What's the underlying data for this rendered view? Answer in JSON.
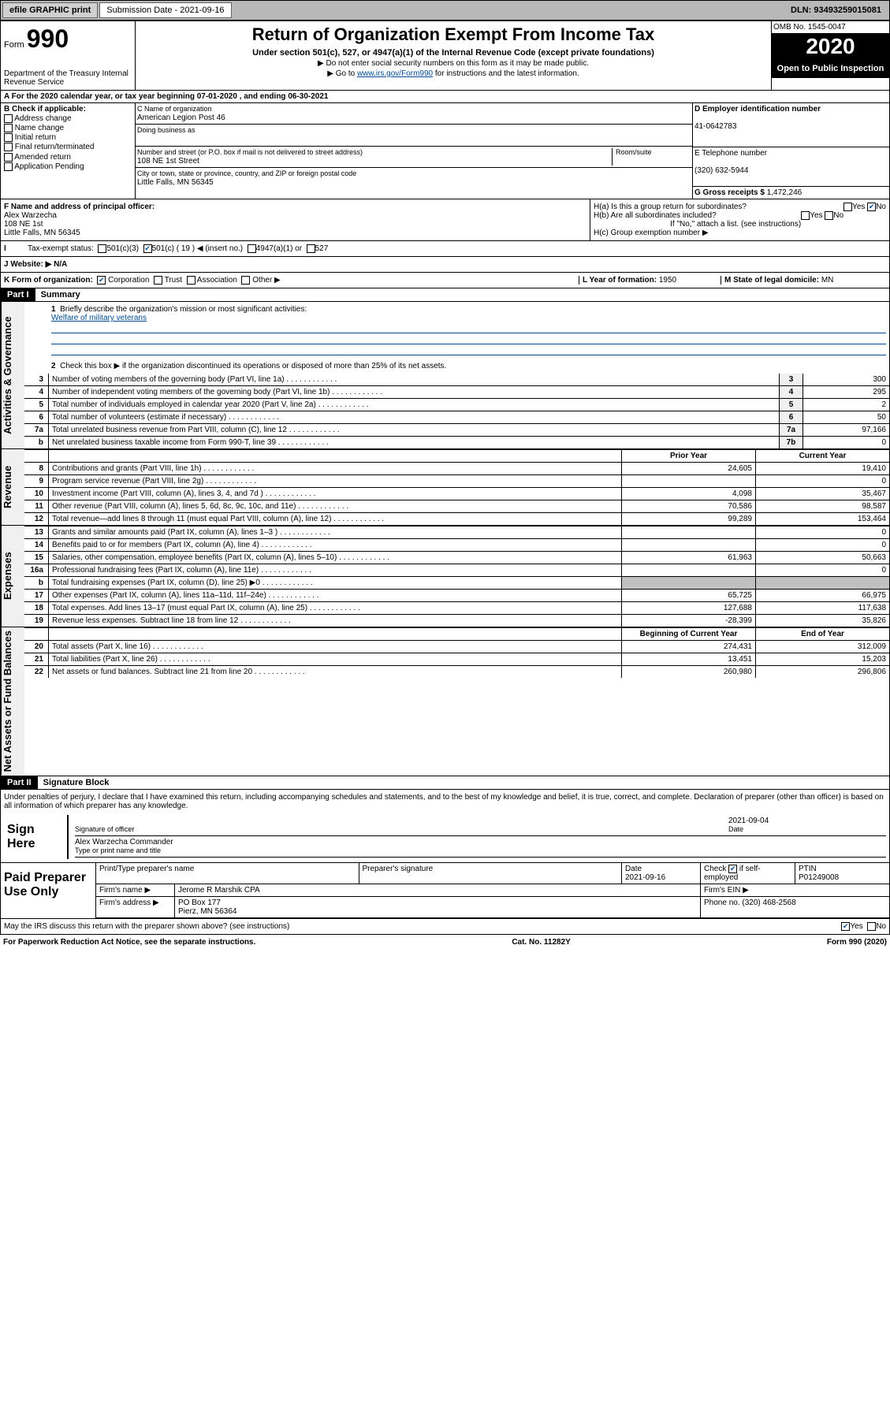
{
  "topbar": {
    "efile_label": "efile GRAPHIC print",
    "submission_label": "Submission Date - 2021-09-16",
    "dln": "DLN: 93493259015081"
  },
  "header": {
    "form_label": "Form",
    "form_number": "990",
    "dept": "Department of the Treasury\nInternal Revenue Service",
    "title": "Return of Organization Exempt From Income Tax",
    "subtitle": "Under section 501(c), 527, or 4947(a)(1) of the Internal Revenue Code (except private foundations)",
    "note1": "▶ Do not enter social security numbers on this form as it may be made public.",
    "note2_pre": "▶ Go to ",
    "note2_link": "www.irs.gov/Form990",
    "note2_post": " for instructions and the latest information.",
    "omb": "OMB No. 1545-0047",
    "year": "2020",
    "inspection": "Open to Public Inspection"
  },
  "row_a": "A For the 2020 calendar year, or tax year beginning 07-01-2020    , and ending 06-30-2021",
  "box_b": {
    "label": "B Check if applicable:",
    "items": [
      "Address change",
      "Name change",
      "Initial return",
      "Final return/terminated",
      "Amended return",
      "Application Pending"
    ]
  },
  "box_c": {
    "label": "C Name of organization",
    "name": "American Legion Post 46",
    "dba_label": "Doing business as",
    "street_label": "Number and street (or P.O. box if mail is not delivered to street address)",
    "room_label": "Room/suite",
    "street": "108 NE 1st Street",
    "city_label": "City or town, state or province, country, and ZIP or foreign postal code",
    "city": "Little Falls, MN  56345"
  },
  "box_d": {
    "label": "D Employer identification number",
    "value": "41-0642783"
  },
  "box_e": {
    "label": "E Telephone number",
    "value": "(320) 632-5944"
  },
  "box_g": {
    "label": "G Gross receipts $",
    "value": "1,472,246"
  },
  "box_f": {
    "label": "F  Name and address of principal officer:",
    "name": "Alex Warzecha",
    "addr1": "108 NE 1st",
    "addr2": "Little Falls, MN  56345"
  },
  "box_h": {
    "ha": "H(a)  Is this a group return for subordinates?",
    "hb": "H(b)  Are all subordinates included?",
    "hb_note": "If \"No,\" attach a list. (see instructions)",
    "hc": "H(c)  Group exemption number ▶",
    "yes": "Yes",
    "no": "No"
  },
  "row_i": {
    "label": "Tax-exempt status:",
    "opt1": "501(c)(3)",
    "opt2": "501(c) ( 19 ) ◀ (insert no.)",
    "opt3": "4947(a)(1) or",
    "opt4": "527"
  },
  "row_j": {
    "label": "J   Website: ▶",
    "value": "N/A"
  },
  "row_k": {
    "label": "K Form of organization:",
    "opts": [
      "Corporation",
      "Trust",
      "Association",
      "Other ▶"
    ],
    "l_label": "L Year of formation:",
    "l_val": "1950",
    "m_label": "M State of legal domicile:",
    "m_val": "MN"
  },
  "parts": {
    "p1": "Part I",
    "p1_title": "Summary",
    "p2": "Part II",
    "p2_title": "Signature Block"
  },
  "summary": {
    "q1": "Briefly describe the organization's mission or most significant activities:",
    "q1_ans": "Welfare of military veterans",
    "q2": "Check this box ▶      if the organization discontinued its operations or disposed of more than 25% of its net assets.",
    "lines": [
      {
        "n": "3",
        "t": "Number of voting members of the governing body (Part VI, line 1a)",
        "r": "3",
        "v": "300"
      },
      {
        "n": "4",
        "t": "Number of independent voting members of the governing body (Part VI, line 1b)",
        "r": "4",
        "v": "295"
      },
      {
        "n": "5",
        "t": "Total number of individuals employed in calendar year 2020 (Part V, line 2a)",
        "r": "5",
        "v": "2"
      },
      {
        "n": "6",
        "t": "Total number of volunteers (estimate if necessary)",
        "r": "6",
        "v": "50"
      },
      {
        "n": "7a",
        "t": "Total unrelated business revenue from Part VIII, column (C), line 12",
        "r": "7a",
        "v": "97,166"
      },
      {
        "n": "b",
        "t": "Net unrelated business taxable income from Form 990-T, line 39",
        "r": "7b",
        "v": "0"
      }
    ],
    "rev_hdr_prior": "Prior Year",
    "rev_hdr_curr": "Current Year",
    "rev": [
      {
        "n": "8",
        "t": "Contributions and grants (Part VIII, line 1h)",
        "p": "24,605",
        "c": "19,410"
      },
      {
        "n": "9",
        "t": "Program service revenue (Part VIII, line 2g)",
        "p": "",
        "c": "0"
      },
      {
        "n": "10",
        "t": "Investment income (Part VIII, column (A), lines 3, 4, and 7d )",
        "p": "4,098",
        "c": "35,467"
      },
      {
        "n": "11",
        "t": "Other revenue (Part VIII, column (A), lines 5, 6d, 8c, 9c, 10c, and 11e)",
        "p": "70,586",
        "c": "98,587"
      },
      {
        "n": "12",
        "t": "Total revenue—add lines 8 through 11 (must equal Part VIII, column (A), line 12)",
        "p": "99,289",
        "c": "153,464"
      }
    ],
    "exp": [
      {
        "n": "13",
        "t": "Grants and similar amounts paid (Part IX, column (A), lines 1–3 )",
        "p": "",
        "c": "0"
      },
      {
        "n": "14",
        "t": "Benefits paid to or for members (Part IX, column (A), line 4)",
        "p": "",
        "c": "0"
      },
      {
        "n": "15",
        "t": "Salaries, other compensation, employee benefits (Part IX, column (A), lines 5–10)",
        "p": "61,963",
        "c": "50,663"
      },
      {
        "n": "16a",
        "t": "Professional fundraising fees (Part IX, column (A), line 11e)",
        "p": "",
        "c": "0"
      },
      {
        "n": "b",
        "t": "Total fundraising expenses (Part IX, column (D), line 25) ▶0",
        "p": "shade",
        "c": "shade"
      },
      {
        "n": "17",
        "t": "Other expenses (Part IX, column (A), lines 11a–11d, 11f–24e)",
        "p": "65,725",
        "c": "66,975"
      },
      {
        "n": "18",
        "t": "Total expenses. Add lines 13–17 (must equal Part IX, column (A), line 25)",
        "p": "127,688",
        "c": "117,638"
      },
      {
        "n": "19",
        "t": "Revenue less expenses. Subtract line 18 from line 12",
        "p": "-28,399",
        "c": "35,826"
      }
    ],
    "net_hdr_beg": "Beginning of Current Year",
    "net_hdr_end": "End of Year",
    "net": [
      {
        "n": "20",
        "t": "Total assets (Part X, line 16)",
        "p": "274,431",
        "c": "312,009"
      },
      {
        "n": "21",
        "t": "Total liabilities (Part X, line 26)",
        "p": "13,451",
        "c": "15,203"
      },
      {
        "n": "22",
        "t": "Net assets or fund balances. Subtract line 21 from line 20",
        "p": "260,980",
        "c": "296,806"
      }
    ]
  },
  "sidelabels": {
    "act": "Activities & Governance",
    "rev": "Revenue",
    "exp": "Expenses",
    "net": "Net Assets or Fund Balances"
  },
  "sig": {
    "perjury": "Under penalties of perjury, I declare that I have examined this return, including accompanying schedules and statements, and to the best of my knowledge and belief, it is true, correct, and complete. Declaration of preparer (other than officer) is based on all information of which preparer has any knowledge.",
    "sign_here": "Sign Here",
    "sig_officer": "Signature of officer",
    "date_label": "Date",
    "date": "2021-09-04",
    "name": "Alex Warzecha  Commander",
    "name_label": "Type or print name and title"
  },
  "prep": {
    "label": "Paid Preparer Use Only",
    "print_name": "Print/Type preparer's name",
    "prep_sig": "Preparer's signature",
    "date_label": "Date",
    "date": "2021-09-16",
    "check_label": "Check        if self-employed",
    "ptin_label": "PTIN",
    "ptin": "P01249008",
    "firm_name_label": "Firm's name   ▶",
    "firm_name": "Jerome R Marshik CPA",
    "firm_ein_label": "Firm's EIN ▶",
    "firm_addr_label": "Firm's address ▶",
    "firm_addr": "PO Box 177",
    "firm_city": "Pierz, MN  56364",
    "phone_label": "Phone no.",
    "phone": "(320) 468-2568"
  },
  "discuss": {
    "q": "May the IRS discuss this return with the preparer shown above? (see instructions)",
    "yes": "Yes",
    "no": "No"
  },
  "footer": {
    "left": "For Paperwork Reduction Act Notice, see the separate instructions.",
    "mid": "Cat. No. 11282Y",
    "right": "Form 990 (2020)"
  }
}
